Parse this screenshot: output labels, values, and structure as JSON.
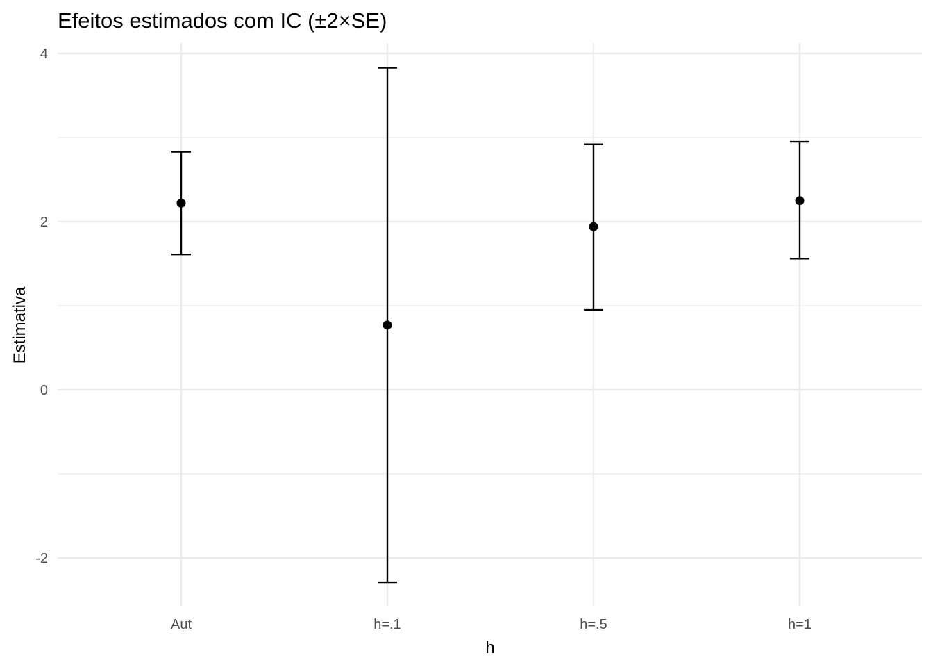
{
  "chart_data": {
    "type": "scatter",
    "title": "Efeitos estimados com IC (±2×SE)",
    "xlabel": "h",
    "ylabel": "Estimativa",
    "categories": [
      "Aut",
      "h=.1",
      "h=.5",
      "h=1"
    ],
    "series": [
      {
        "estimates": [
          2.22,
          0.77,
          1.94,
          2.25
        ],
        "lower": [
          1.61,
          -2.29,
          0.95,
          1.56
        ],
        "upper": [
          2.83,
          3.83,
          2.92,
          2.95
        ]
      }
    ],
    "ylim": [
      -2.6,
      4.1
    ],
    "yticks": [
      -2,
      0,
      2,
      4
    ],
    "ytick_labels": [
      "-2",
      "0",
      "2",
      "4"
    ],
    "grid": true,
    "legend": "none"
  }
}
